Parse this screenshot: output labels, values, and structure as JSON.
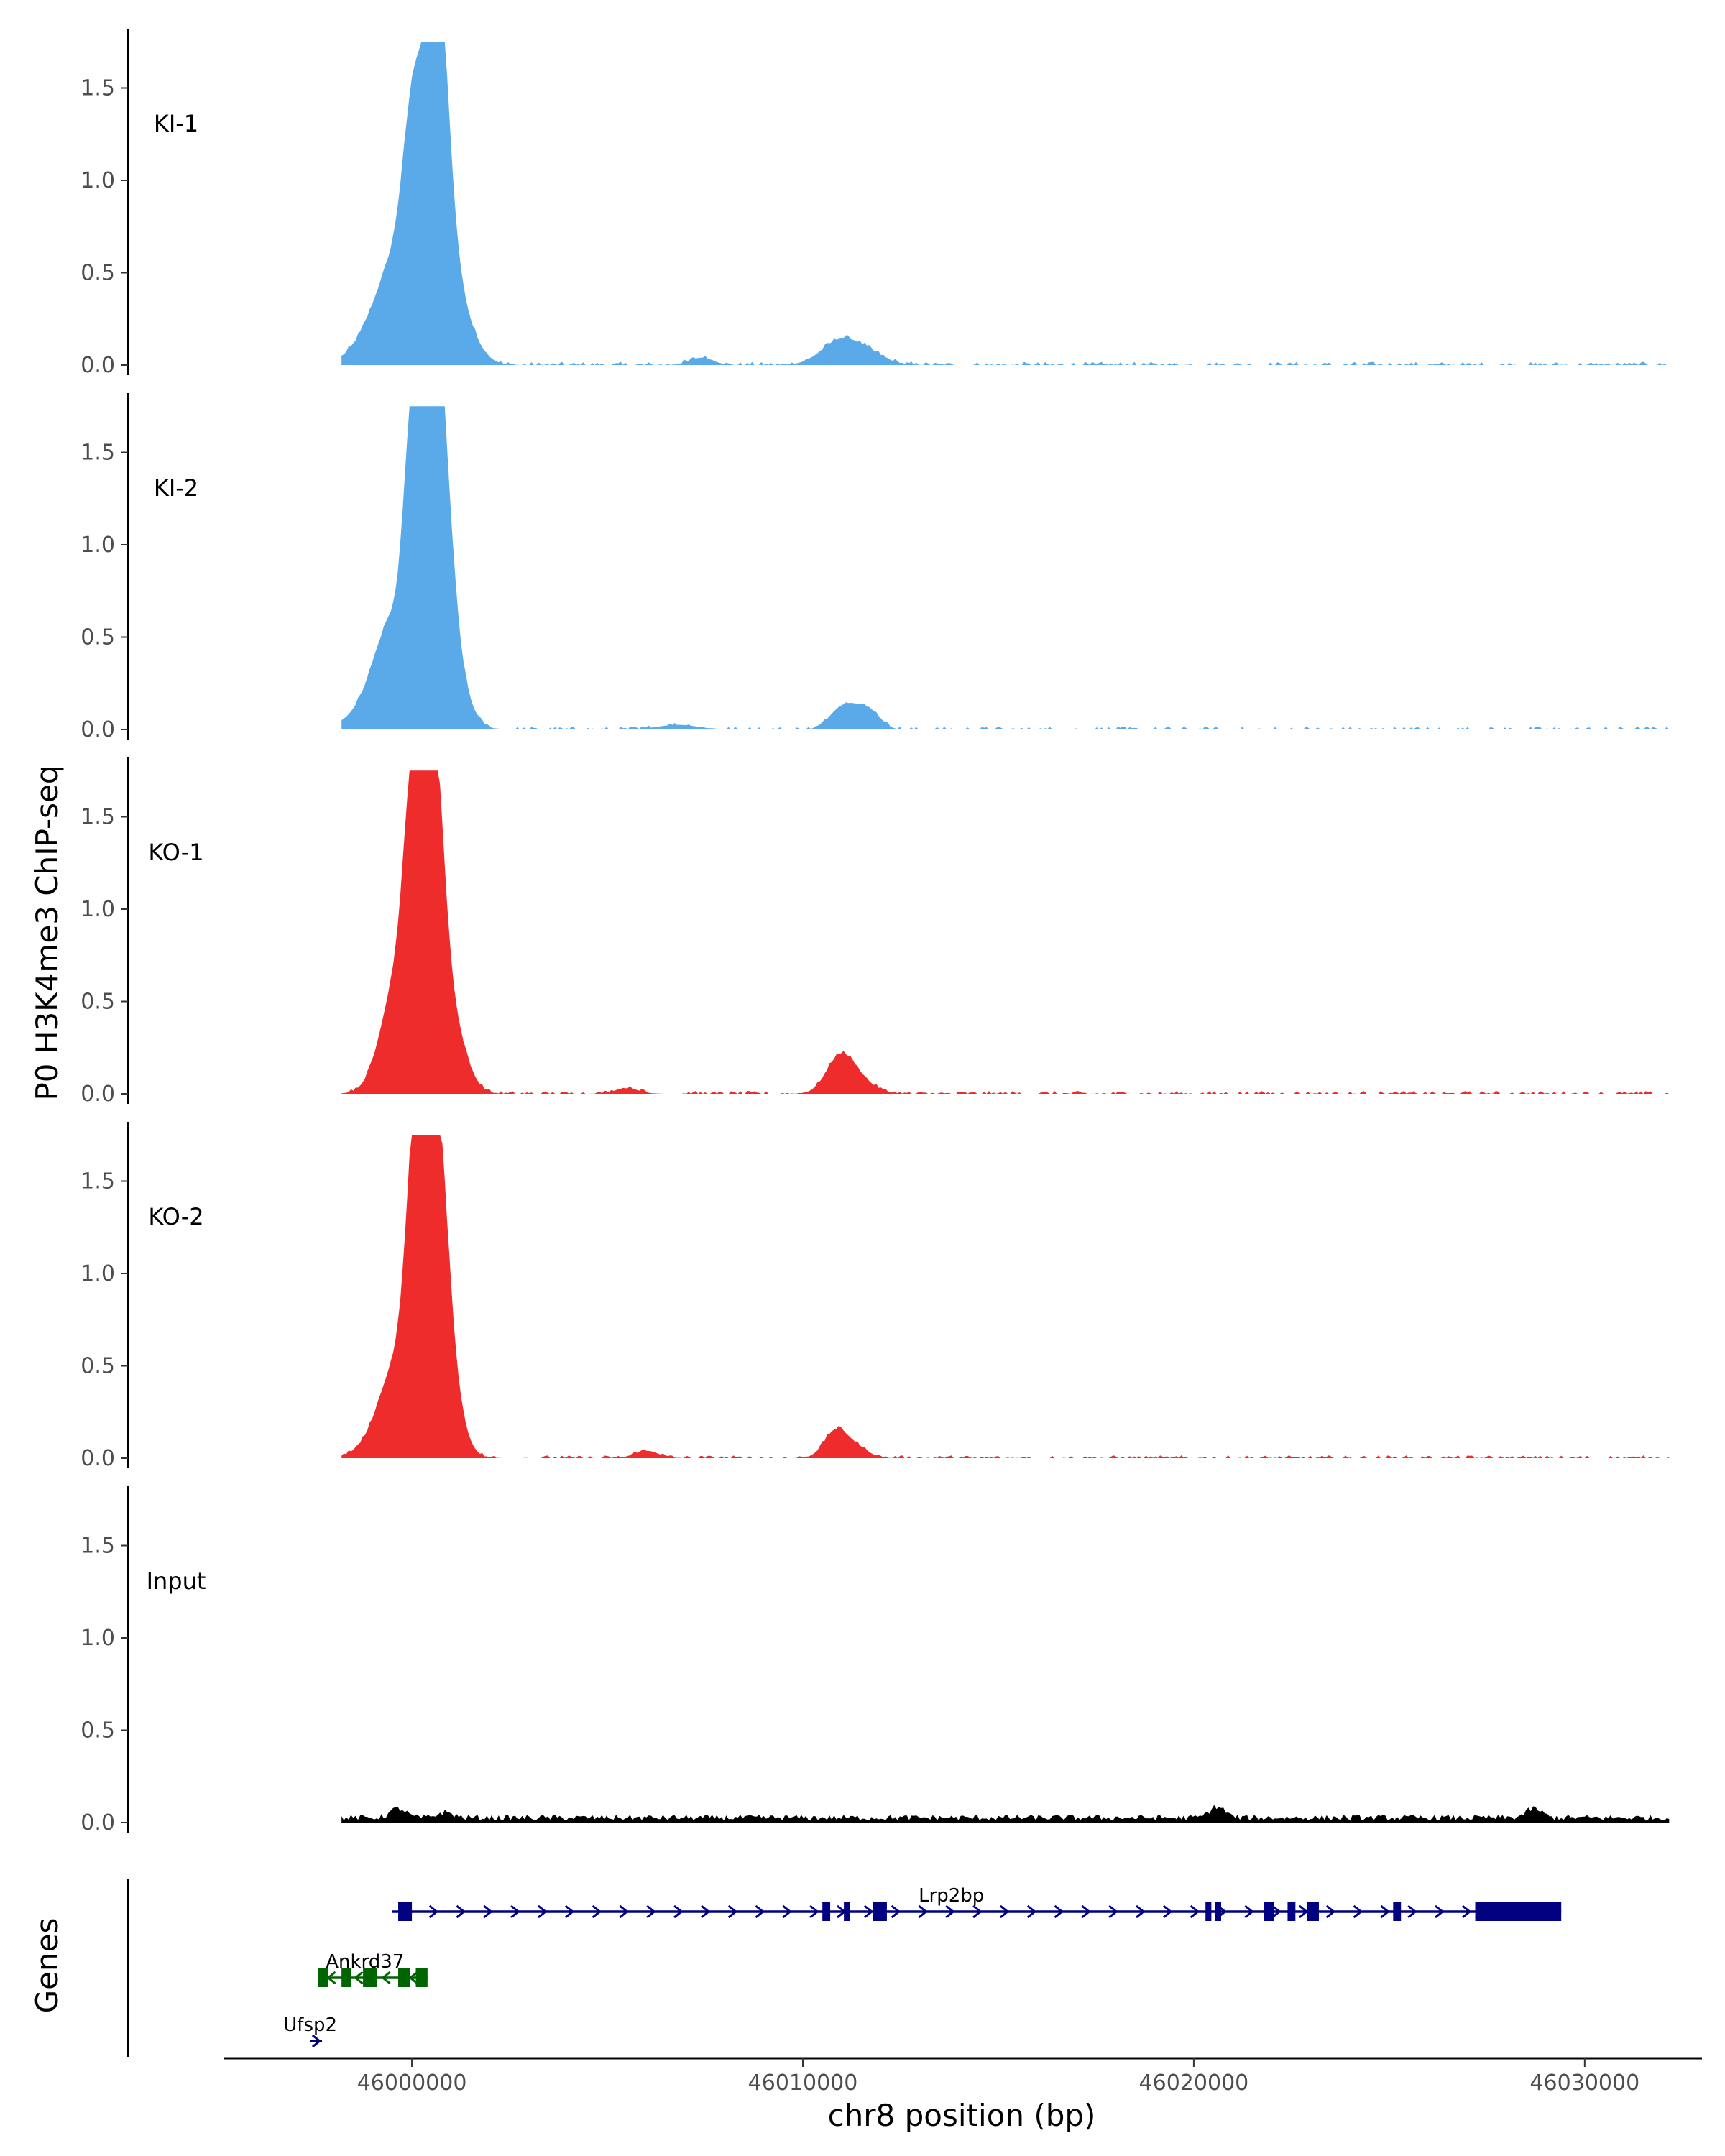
{
  "chart_data": {
    "type": "area",
    "ylabel": "P0 H3K4me3 ChIP-seq",
    "xlabel": "chr8 position (bp)",
    "genes_label": "Genes",
    "ylim": [
      0,
      1.75
    ],
    "xlim": [
      45995200,
      46033000
    ],
    "y_ticks": [
      "0.0",
      "0.5",
      "1.0",
      "1.5"
    ],
    "x_ticks": [
      "46000000",
      "46010000",
      "46020000",
      "46030000"
    ],
    "x_tick_values": [
      46000000,
      46010000,
      46020000,
      46030000
    ],
    "grid": false,
    "data_range": [
      45998200,
      46032200
    ],
    "series": [
      {
        "name": "KI-1",
        "color": "#5aaaea",
        "noise": 0.018,
        "peaks": [
          [
            45999500,
            0.06,
            400
          ],
          [
            45999750,
            0.55,
            700
          ],
          [
            46000050,
            0.85,
            260
          ],
          [
            46000650,
            1.48,
            270
          ],
          [
            46000900,
            0.45,
            500
          ],
          [
            46011000,
            0.14,
            500
          ],
          [
            46011800,
            0.04,
            400
          ],
          [
            46007400,
            0.04,
            300
          ]
        ]
      },
      {
        "name": "KI-2",
        "color": "#5aaaea",
        "noise": 0.016,
        "peaks": [
          [
            45999300,
            0.1,
            300
          ],
          [
            45999750,
            0.55,
            700
          ],
          [
            46000050,
            1.2,
            230
          ],
          [
            46000600,
            1.62,
            300
          ],
          [
            46000900,
            0.4,
            400
          ],
          [
            46010900,
            0.09,
            280
          ],
          [
            46011300,
            0.09,
            260
          ],
          [
            46011750,
            0.09,
            260
          ],
          [
            46006800,
            0.025,
            500
          ]
        ]
      },
      {
        "name": "KO-1",
        "color": "#ee2c2c",
        "noise": 0.016,
        "peaks": [
          [
            45999400,
            0.12,
            300
          ],
          [
            45999850,
            0.6,
            500
          ],
          [
            46000050,
            1.2,
            240
          ],
          [
            46000550,
            1.48,
            240
          ],
          [
            46000850,
            0.3,
            300
          ],
          [
            46001150,
            0.2,
            350
          ],
          [
            46010950,
            0.19,
            350
          ],
          [
            46011450,
            0.06,
            400
          ],
          [
            46005500,
            0.03,
            300
          ]
        ]
      },
      {
        "name": "KO-2",
        "color": "#ee2c2c",
        "noise": 0.016,
        "peaks": [
          [
            45999400,
            0.05,
            300
          ],
          [
            45999850,
            0.55,
            600
          ],
          [
            46000100,
            1.25,
            230
          ],
          [
            46000600,
            1.45,
            280
          ],
          [
            46000900,
            0.35,
            350
          ],
          [
            46010850,
            0.15,
            300
          ],
          [
            46011400,
            0.05,
            300
          ],
          [
            46006000,
            0.04,
            300
          ]
        ]
      },
      {
        "name": "Input",
        "color": "#000000",
        "noise": 0.035,
        "peaks": [
          [
            45999650,
            0.05,
            200
          ],
          [
            46000850,
            0.03,
            200
          ],
          [
            46020600,
            0.06,
            200
          ],
          [
            46028700,
            0.05,
            200
          ]
        ]
      }
    ],
    "genes": [
      {
        "name": "Lrp2bp",
        "color": "#000080",
        "strand": "+",
        "start": 45999500,
        "end": 46029400,
        "label_x": 46013800,
        "row": 0,
        "exons": [
          [
            45999650,
            46000000
          ],
          [
            46010500,
            46010700
          ],
          [
            46011050,
            46011200
          ],
          [
            46011800,
            46012150
          ],
          [
            46020300,
            46020450
          ],
          [
            46020550,
            46020700
          ],
          [
            46021800,
            46022050
          ],
          [
            46022400,
            46022600
          ],
          [
            46022900,
            46023200
          ],
          [
            46025100,
            46025300
          ],
          [
            46027200,
            46029400
          ]
        ]
      },
      {
        "name": "Ankrd37",
        "color": "#006400",
        "strand": "-",
        "start": 45997600,
        "end": 46000400,
        "label_x": 45998800,
        "row": 1,
        "exons": [
          [
            45997600,
            45997850
          ],
          [
            45998200,
            45998450
          ],
          [
            45998750,
            45999100
          ],
          [
            45999650,
            45999950
          ],
          [
            46000100,
            46000400
          ]
        ]
      },
      {
        "name": "Ufsp2",
        "color": "#000080",
        "strand": "+",
        "start": 45997400,
        "end": 45997700,
        "label_x": 45997400,
        "row": 2,
        "exons": []
      }
    ]
  }
}
